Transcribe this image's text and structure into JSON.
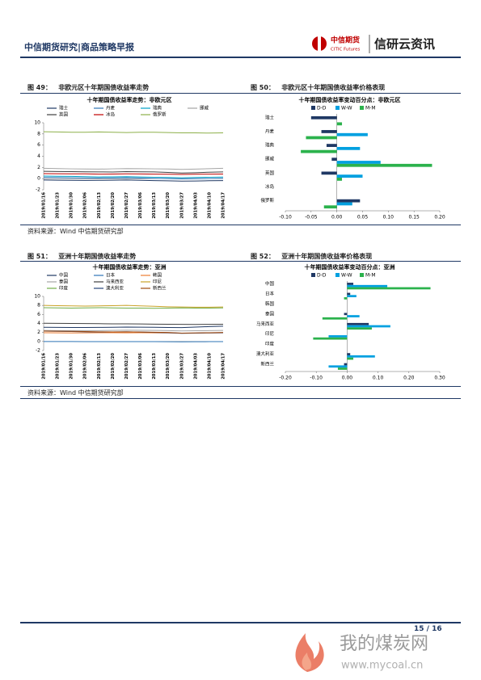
{
  "header": {
    "title": "中信期货研究|商品策略早报",
    "logo_cn": "中信期货",
    "logo_en": "CITIC Futures",
    "brand": "信研云资讯"
  },
  "figures": [
    {
      "label": "图 49：",
      "caption": "非欧元区十年期国债收益率走势"
    },
    {
      "label": "图 50：",
      "caption": "非欧元区十年期国债收益率价格表现"
    },
    {
      "label": "图 51：",
      "caption": "亚洲十年期国债收益率走势"
    },
    {
      "label": "图 52：",
      "caption": "亚洲十年期国债收益率价格表现"
    }
  ],
  "sources": [
    "资料来源：Wind  中信期货研究部",
    "资料来源：Wind  中信期货研究部"
  ],
  "chart_data": [
    {
      "type": "line",
      "title": "十年期国债收益率走势：非欧元区",
      "categories": [
        "2019/01/16",
        "2019/01/23",
        "2019/01/30",
        "2019/02/06",
        "2019/02/13",
        "2019/02/20",
        "2019/02/27",
        "2019/03/06",
        "2019/03/13",
        "2019/03/20",
        "2019/03/27",
        "2019/04/03",
        "2019/04/10",
        "2019/04/17"
      ],
      "series": [
        {
          "name": "瑞士",
          "color": "#1f3864",
          "values": [
            -0.25,
            -0.28,
            -0.3,
            -0.32,
            -0.3,
            -0.28,
            -0.25,
            -0.3,
            -0.35,
            -0.4,
            -0.45,
            -0.42,
            -0.38,
            -0.35
          ]
        },
        {
          "name": "丹麦",
          "color": "#2e75b6",
          "values": [
            0.2,
            0.18,
            0.15,
            0.12,
            0.1,
            0.12,
            0.15,
            0.1,
            0.05,
            0.0,
            -0.05,
            -0.02,
            0.02,
            0.05
          ]
        },
        {
          "name": "瑞典",
          "color": "#00a0c6",
          "values": [
            0.45,
            0.42,
            0.4,
            0.35,
            0.3,
            0.32,
            0.35,
            0.3,
            0.25,
            0.2,
            0.15,
            0.2,
            0.25,
            0.28
          ]
        },
        {
          "name": "挪威",
          "color": "#a5a5a5",
          "values": [
            1.85,
            1.8,
            1.75,
            1.72,
            1.7,
            1.75,
            1.8,
            1.78,
            1.75,
            1.72,
            1.65,
            1.7,
            1.78,
            1.85
          ]
        },
        {
          "name": "英国",
          "color": "#404040",
          "values": [
            1.3,
            1.28,
            1.25,
            1.22,
            1.2,
            1.18,
            1.25,
            1.22,
            1.2,
            1.1,
            1.0,
            1.05,
            1.15,
            1.2
          ]
        },
        {
          "name": "冰岛",
          "color": "#c00000",
          "values": [
            0.9,
            0.88,
            0.85,
            0.85,
            0.8,
            0.82,
            0.85,
            0.83,
            0.8,
            0.78,
            0.75,
            0.78,
            0.8,
            0.82
          ]
        },
        {
          "name": "俄罗斯",
          "color": "#8db04a",
          "values": [
            8.4,
            8.35,
            8.3,
            8.3,
            8.35,
            8.3,
            8.25,
            8.3,
            8.3,
            8.25,
            8.2,
            8.2,
            8.15,
            8.2
          ]
        }
      ],
      "ylim": [
        -2,
        10
      ],
      "yticks": [
        -2,
        0,
        2,
        4,
        6,
        8,
        10
      ]
    },
    {
      "type": "hbar",
      "title": "十年期国债收益率变动百分点：非欧元区",
      "categories": [
        "瑞士",
        "丹麦",
        "瑞典",
        "挪威",
        "英国",
        "冰岛",
        "俄罗斯"
      ],
      "series": [
        {
          "name": "D-D",
          "color": "#1f3864",
          "values": [
            -0.05,
            -0.03,
            -0.02,
            -0.01,
            -0.03,
            0,
            0.045
          ]
        },
        {
          "name": "W-W",
          "color": "#00a0e0",
          "values": [
            0.0,
            0.06,
            0.045,
            0.085,
            0.05,
            0,
            0.03
          ]
        },
        {
          "name": "M-M",
          "color": "#2bb24c",
          "values": [
            0.01,
            -0.06,
            -0.07,
            0.185,
            0.01,
            0,
            -0.025
          ]
        }
      ],
      "xlim": [
        -0.1,
        0.2
      ],
      "xticks": [
        {
          "value": -0.1,
          "label": "-0.10"
        },
        {
          "value": -0.05,
          "label": "-0.05"
        },
        {
          "value": 0,
          "label": "0.00"
        },
        {
          "value": 0.05,
          "label": "0.05"
        },
        {
          "value": 0.1,
          "label": "0.10"
        },
        {
          "value": 0.15,
          "label": "0.15"
        },
        {
          "value": 0.2,
          "label": "0.20"
        }
      ]
    },
    {
      "type": "line",
      "title": "十年期国债收益率走势：亚洲",
      "categories": [
        "2019/01/16",
        "2019/01/23",
        "2019/01/30",
        "2019/02/06",
        "2019/02/13",
        "2019/02/20",
        "2019/02/27",
        "2019/03/06",
        "2019/03/13",
        "2019/03/20",
        "2019/03/27",
        "2019/04/03",
        "2019/04/10",
        "2019/04/17"
      ],
      "series": [
        {
          "name": "中国",
          "color": "#1f3864",
          "values": [
            3.15,
            3.12,
            3.1,
            3.1,
            3.12,
            3.15,
            3.2,
            3.18,
            3.15,
            3.1,
            3.08,
            3.2,
            3.3,
            3.4
          ]
        },
        {
          "name": "日本",
          "color": "#2e75b6",
          "values": [
            0.0,
            0.0,
            -0.01,
            -0.02,
            -0.02,
            -0.03,
            -0.03,
            -0.02,
            -0.04,
            -0.06,
            -0.08,
            -0.06,
            -0.04,
            -0.03
          ]
        },
        {
          "name": "韩国",
          "color": "#ed7d31",
          "values": [
            1.95,
            1.92,
            1.9,
            1.92,
            1.95,
            1.93,
            1.92,
            1.95,
            1.92,
            1.9,
            1.85,
            1.88,
            1.9,
            1.92
          ]
        },
        {
          "name": "泰国",
          "color": "#a5a5a5",
          "values": [
            2.45,
            2.42,
            2.4,
            2.4,
            2.42,
            2.45,
            2.5,
            2.48,
            2.45,
            2.4,
            2.35,
            2.38,
            2.4,
            2.45
          ]
        },
        {
          "name": "马来西亚",
          "color": "#404040",
          "values": [
            4.05,
            4.02,
            4.0,
            3.98,
            3.95,
            3.92,
            3.9,
            3.88,
            3.85,
            3.82,
            3.8,
            3.78,
            3.8,
            3.82
          ]
        },
        {
          "name": "印尼",
          "color": "#c9a227",
          "values": [
            8.0,
            7.95,
            7.9,
            7.85,
            7.9,
            7.95,
            8.0,
            7.9,
            7.8,
            7.7,
            7.65,
            7.6,
            7.6,
            7.65
          ]
        },
        {
          "name": "印度",
          "color": "#70ad47",
          "values": [
            7.5,
            7.45,
            7.4,
            7.45,
            7.5,
            7.45,
            7.4,
            7.4,
            7.35,
            7.4,
            7.45,
            7.4,
            7.4,
            7.45
          ]
        },
        {
          "name": "澳大利亚",
          "color": "#264478",
          "values": [
            2.3,
            2.25,
            2.2,
            2.15,
            2.1,
            2.12,
            2.15,
            2.1,
            2.0,
            1.95,
            1.8,
            1.85,
            1.9,
            1.95
          ]
        },
        {
          "name": "新西兰",
          "color": "#9e480e",
          "values": [
            2.3,
            2.28,
            2.25,
            2.2,
            2.15,
            2.12,
            2.15,
            2.1,
            2.05,
            2.0,
            1.85,
            1.9,
            1.95,
            2.0
          ]
        }
      ],
      "ylim": [
        -2,
        10
      ],
      "yticks": [
        -2,
        0,
        2,
        4,
        6,
        8,
        10
      ]
    },
    {
      "type": "hbar",
      "title": "十年期国债收益率变动百分点：亚洲",
      "categories": [
        "中国",
        "日本",
        "韩国",
        "泰国",
        "马来西亚",
        "印尼",
        "印度",
        "澳大利亚",
        "新西兰"
      ],
      "series": [
        {
          "name": "D-D",
          "color": "#1f3864",
          "values": [
            0.02,
            0.01,
            0,
            -0.01,
            0.07,
            0,
            0,
            0.01,
            -0.01
          ]
        },
        {
          "name": "W-W",
          "color": "#00a0e0",
          "values": [
            0.13,
            0.03,
            0,
            0.04,
            0.14,
            -0.06,
            0,
            0.09,
            -0.06
          ]
        },
        {
          "name": "M-M",
          "color": "#2bb24c",
          "values": [
            0.27,
            -0.01,
            0,
            -0.08,
            0.08,
            -0.11,
            0,
            0.02,
            -0.03
          ]
        }
      ],
      "xlim": [
        -0.2,
        0.3
      ],
      "xticks": [
        {
          "value": -0.2,
          "label": "-0.20"
        },
        {
          "value": -0.1,
          "label": "-0.10"
        },
        {
          "value": 0,
          "label": "0.00"
        },
        {
          "value": 0.1,
          "label": "0.10"
        },
        {
          "value": 0.2,
          "label": "0.20"
        },
        {
          "value": 0.3,
          "label": "0.30"
        }
      ]
    }
  ],
  "footer": {
    "page": "15 / 16"
  },
  "watermark": {
    "name": "我的煤炭网",
    "url": "www.mycoal.cn"
  }
}
